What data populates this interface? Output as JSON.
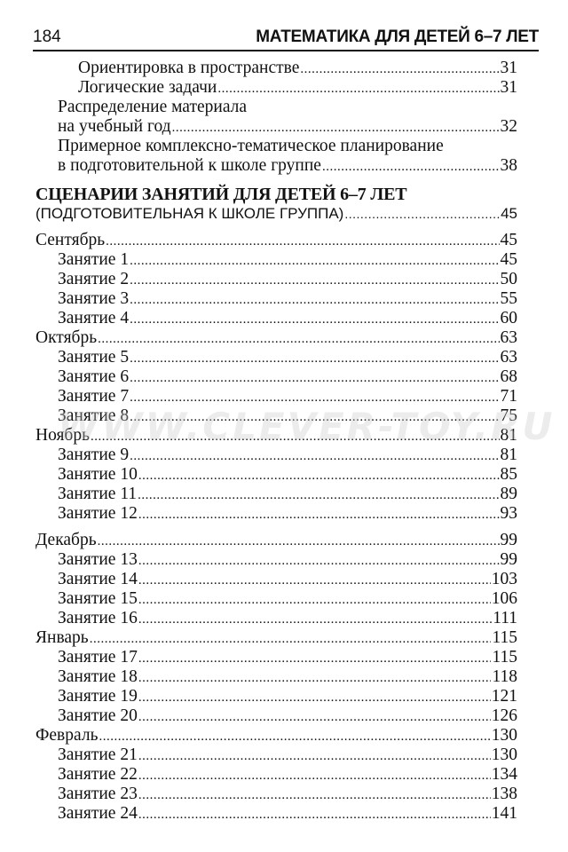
{
  "header": {
    "page_number": "184",
    "title": "МАТЕМАТИКА ДЛЯ ДЕТЕЙ 6–7 ЛЕТ"
  },
  "toc": {
    "intro": [
      {
        "level": 2,
        "text": "Ориентировка в пространстве",
        "page": "31"
      },
      {
        "level": 2,
        "text": "Логические задачи",
        "page": "31"
      },
      {
        "level": 1,
        "text": "Распределение материала",
        "page": ""
      },
      {
        "level": 1,
        "text": "на учебный год",
        "page": "32"
      },
      {
        "level": 1,
        "text": "Примерное комплексно-тематическое планирование",
        "page": ""
      },
      {
        "level": 1,
        "text": "в подготовительной к школе группе",
        "page": "38"
      }
    ],
    "section": {
      "title": "СЦЕНАРИИ ЗАНЯТИЙ ДЛЯ ДЕТЕЙ 6–7 ЛЕТ",
      "subtitle": "(ПОДГОТОВИТЕЛЬНАЯ К  ШКОЛЕ ГРУППА)",
      "page": "45"
    },
    "months": [
      {
        "name": "Сентябрь",
        "page": "45",
        "sessions": [
          {
            "label": "Занятие 1",
            "page": "45"
          },
          {
            "label": "Занятие 2",
            "page": "50"
          },
          {
            "label": "Занятие 3",
            "page": "55"
          },
          {
            "label": "Занятие 4",
            "page": "60"
          }
        ]
      },
      {
        "name": "Октябрь",
        "page": "63",
        "sessions": [
          {
            "label": "Занятие 5",
            "page": "63"
          },
          {
            "label": "Занятие 6",
            "page": "68"
          },
          {
            "label": "Занятие 7",
            "page": "71"
          },
          {
            "label": "Занятие 8",
            "page": "75"
          }
        ]
      },
      {
        "name": "Ноябрь",
        "page": "81",
        "sessions": [
          {
            "label": "Занятие 9",
            "page": "81"
          },
          {
            "label": "Занятие 10",
            "page": "85"
          },
          {
            "label": "Занятие 11",
            "page": "89"
          },
          {
            "label": "Занятие 12",
            "page": "93"
          }
        ]
      },
      {
        "name": "Декабрь",
        "page": "99",
        "sessions": [
          {
            "label": "Занятие 13",
            "page": "99"
          },
          {
            "label": "Занятие 14",
            "page": "103"
          },
          {
            "label": "Занятие 15",
            "page": "106"
          },
          {
            "label": "Занятие 16",
            "page": "111"
          }
        ]
      },
      {
        "name": "Январь",
        "page": "115",
        "sessions": [
          {
            "label": "Занятие 17",
            "page": "115"
          },
          {
            "label": "Занятие 18",
            "page": "118"
          },
          {
            "label": "Занятие 19",
            "page": "121"
          },
          {
            "label": "Занятие 20",
            "page": "126"
          }
        ]
      },
      {
        "name": "Февраль",
        "page": "130",
        "sessions": [
          {
            "label": "Занятие 21",
            "page": "130"
          },
          {
            "label": "Занятие 22",
            "page": "134"
          },
          {
            "label": "Занятие 23",
            "page": "138"
          },
          {
            "label": "Занятие 24",
            "page": "141"
          }
        ]
      }
    ]
  },
  "watermark": "WWW.CLEVER-TOY.RU"
}
